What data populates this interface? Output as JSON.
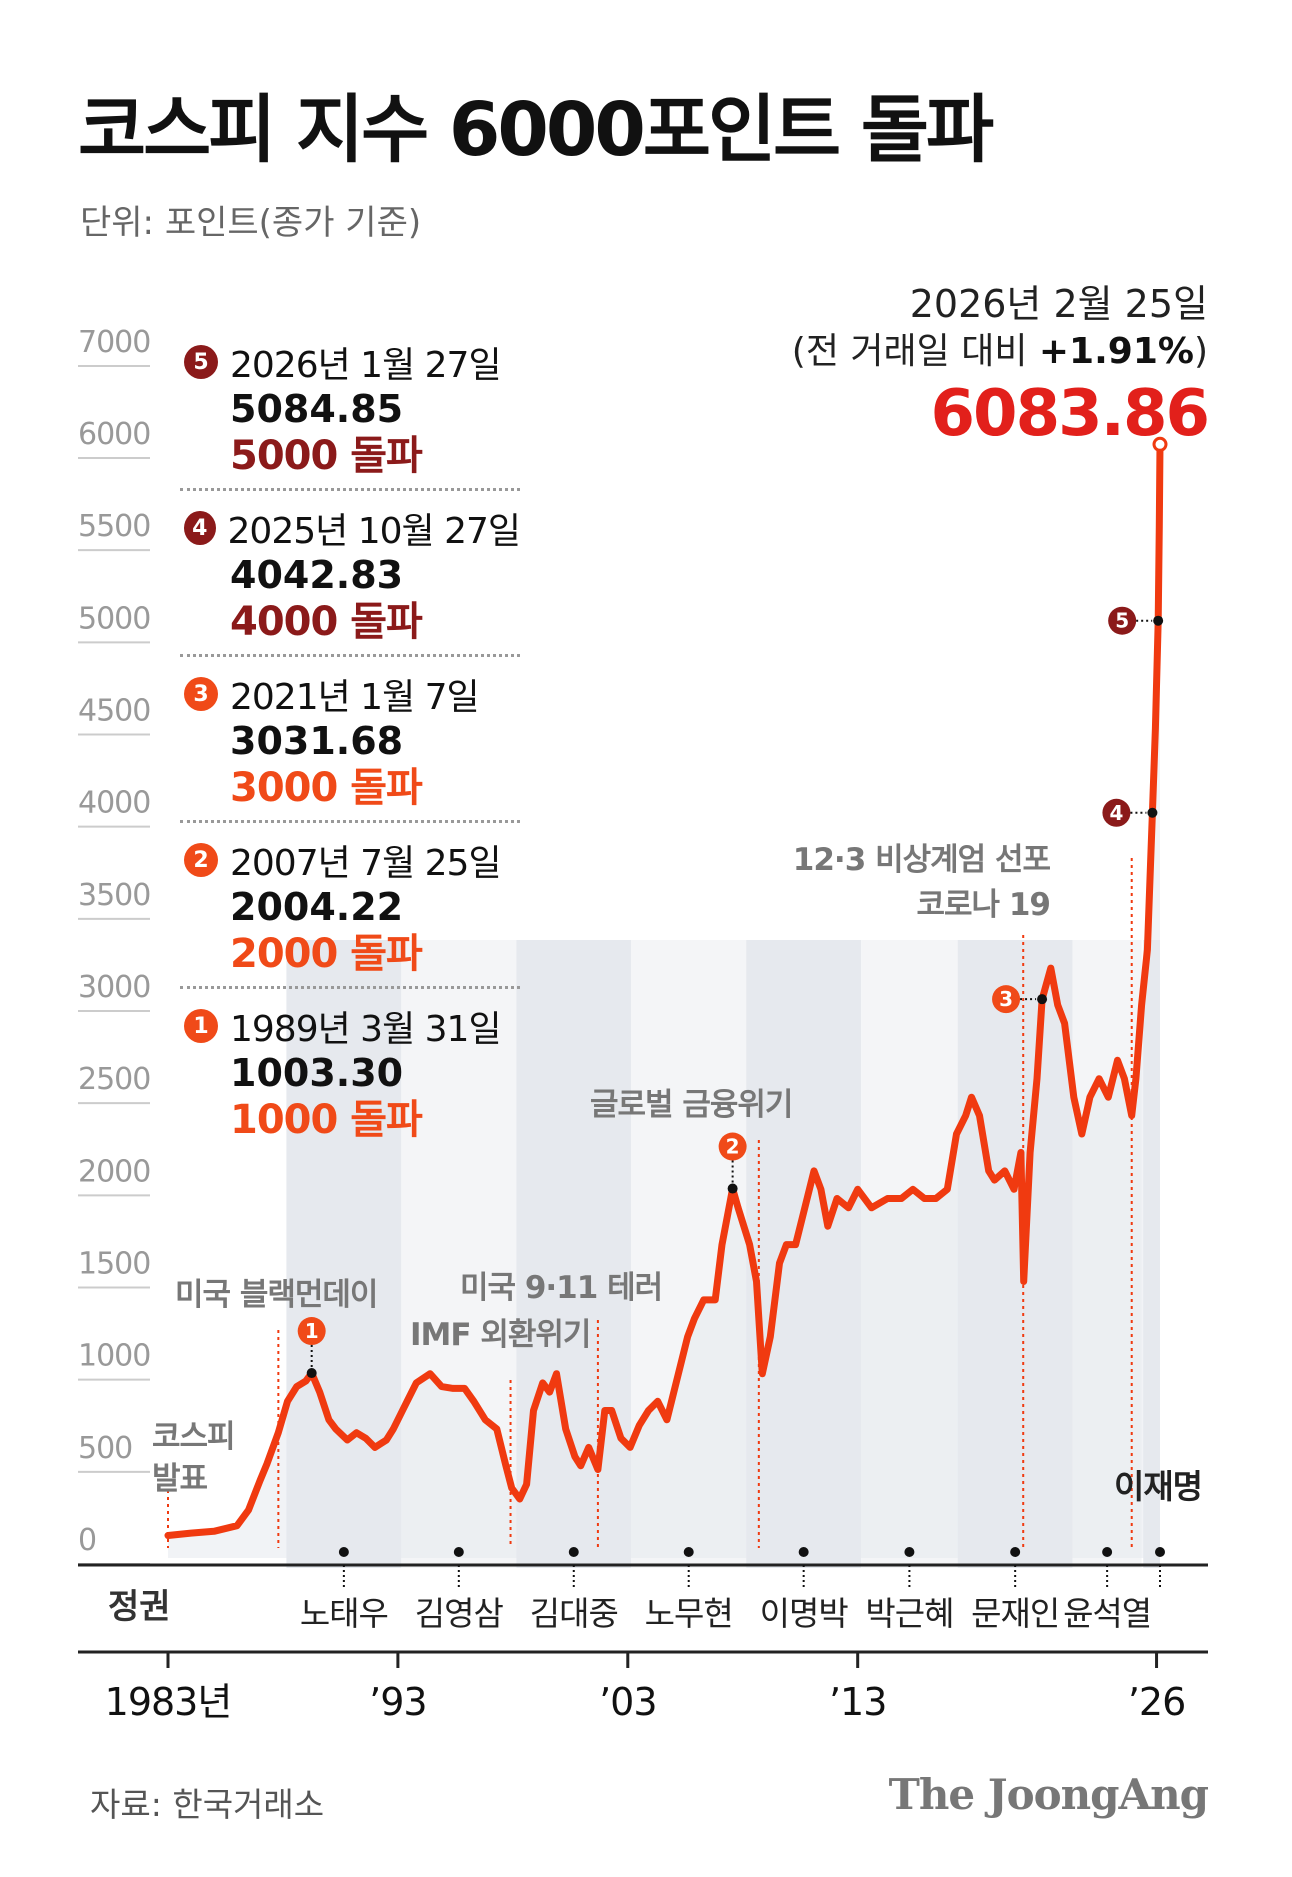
{
  "title": "코스피 지수 6000포인트 돌파",
  "unit_label": "단위: 포인트(종가 기준)",
  "source": "자료: 한국거래소",
  "publisher": "The JoongAng",
  "colors": {
    "line": "#f03a10",
    "dark_badge": "#8b1a1a",
    "orange_badge": "#f04a18",
    "highlight_value": "#e2201b",
    "band": "#e6e9ee",
    "band_alt": "#f4f5f7"
  },
  "latest": {
    "date": "2026년 2월 25일",
    "change_prefix": "(전 거래일 대비 ",
    "change": "+1.91%",
    "change_suffix": ")",
    "value": "6083.86"
  },
  "milestones": [
    {
      "num": "5",
      "date": "2026년 1월 27일",
      "value": "5084.85",
      "break": "5000 돌파",
      "tone": "dark",
      "year": 2026.07,
      "index": 5084.85
    },
    {
      "num": "4",
      "date": "2025년 10월 27일",
      "value": "4042.83",
      "break": "4000 돌파",
      "tone": "dark",
      "year": 2025.82,
      "index": 4042.83
    },
    {
      "num": "3",
      "date": "2021년 1월 7일",
      "value": "3031.68",
      "break": "3000 돌파",
      "tone": "orange",
      "year": 2021.02,
      "index": 3031.68
    },
    {
      "num": "2",
      "date": "2007년 7월 25일",
      "value": "2004.22",
      "break": "2000 돌파",
      "tone": "orange",
      "year": 2007.56,
      "index": 2004.22
    },
    {
      "num": "1",
      "date": "1989년 3월 31일",
      "value": "1003.30",
      "break": "1000 돌파",
      "tone": "orange",
      "year": 1989.25,
      "index": 1003.3
    }
  ],
  "events": [
    {
      "label": "코스피",
      "label2": "발표",
      "year": 1983.0
    },
    {
      "label": "미국 블랙먼데이",
      "year": 1987.8
    },
    {
      "label": "IMF 외환위기",
      "year": 1997.9
    },
    {
      "label": "미국 9·11 테러",
      "year": 2001.7
    },
    {
      "label": "글로벌 금융위기",
      "year": 2008.7
    },
    {
      "label": "코로나 19",
      "year": 2020.2
    },
    {
      "label": "12·3 비상계엄 선포",
      "year": 2024.92
    }
  ],
  "regime_label": "정권",
  "regimes": [
    {
      "name": "노태우",
      "start": 1988.15,
      "end": 1993.15
    },
    {
      "name": "김영삼",
      "start": 1993.15,
      "end": 1998.15
    },
    {
      "name": "김대중",
      "start": 1998.15,
      "end": 2003.15
    },
    {
      "name": "노무현",
      "start": 2003.15,
      "end": 2008.15
    },
    {
      "name": "이명박",
      "start": 2008.15,
      "end": 2013.15
    },
    {
      "name": "박근혜",
      "start": 2013.15,
      "end": 2017.35
    },
    {
      "name": "문재인",
      "start": 2017.35,
      "end": 2022.35
    },
    {
      "name": "윤석열",
      "start": 2022.35,
      "end": 2025.35
    },
    {
      "name": "이재명",
      "start": 2025.42,
      "end": 2026.15
    }
  ],
  "chart_data": {
    "type": "line",
    "title": "코스피 지수 6000포인트 돌파",
    "ylabel": "단위: 포인트(종가 기준)",
    "xlabel": "",
    "y_ticks": [
      0,
      500,
      1000,
      1500,
      2000,
      2500,
      3000,
      3500,
      4000,
      4500,
      5000,
      5500,
      6000,
      7000
    ],
    "y_tick_labels": [
      "0",
      "500",
      "1000",
      "1500",
      "2000",
      "2500",
      "3000",
      "3500",
      "4000",
      "4500",
      "5000",
      "5500",
      "6000",
      "7000"
    ],
    "x_tick_labels": [
      {
        "year": 1983,
        "label": "1983년"
      },
      {
        "year": 1993,
        "label": "’93"
      },
      {
        "year": 2003,
        "label": "’03"
      },
      {
        "year": 2013,
        "label": "’13"
      },
      {
        "year": 2026,
        "label": "’26"
      }
    ],
    "xlim": [
      1983,
      2026.15
    ],
    "series": [
      {
        "x": [
          1983.0,
          1984.0,
          1985.0,
          1986.0,
          1986.5,
          1987.0,
          1987.3,
          1987.8,
          1988.2,
          1988.6,
          1989.0,
          1989.25,
          1989.6,
          1990.0,
          1990.3,
          1990.8,
          1991.2,
          1991.6,
          1992.0,
          1992.5,
          1992.8,
          1993.2,
          1993.8,
          1994.4,
          1994.9,
          1995.4,
          1995.9,
          1996.3,
          1996.8,
          1997.3,
          1997.7,
          1997.95,
          1998.3,
          1998.6,
          1998.9,
          1999.3,
          1999.6,
          1999.9,
          2000.3,
          2000.7,
          2000.95,
          2001.3,
          2001.7,
          2002.0,
          2002.3,
          2002.7,
          2003.1,
          2003.5,
          2003.9,
          2004.3,
          2004.7,
          2005.2,
          2005.6,
          2005.9,
          2006.3,
          2006.8,
          2007.1,
          2007.56,
          2007.8,
          2008.3,
          2008.6,
          2008.85,
          2009.2,
          2009.6,
          2009.9,
          2010.3,
          2010.7,
          2011.1,
          2011.4,
          2011.7,
          2012.1,
          2012.6,
          2013.0,
          2013.6,
          2014.3,
          2014.9,
          2015.4,
          2015.9,
          2016.4,
          2016.9,
          2017.3,
          2017.7,
          2017.95,
          2018.3,
          2018.7,
          2018.95,
          2019.4,
          2019.8,
          2020.1,
          2020.22,
          2020.5,
          2020.8,
          2021.02,
          2021.4,
          2021.7,
          2022.0,
          2022.4,
          2022.75,
          2023.1,
          2023.5,
          2023.9,
          2024.3,
          2024.6,
          2024.92,
          2025.1,
          2025.35,
          2025.6,
          2025.82,
          2025.95,
          2026.07,
          2026.12,
          2026.15
        ],
        "y": [
          122,
          135,
          145,
          175,
          260,
          420,
          510,
          680,
          850,
          930,
          960,
          1003,
          900,
          750,
          700,
          640,
          680,
          650,
          600,
          640,
          700,
          800,
          950,
          1000,
          930,
          920,
          920,
          850,
          750,
          700,
          500,
          380,
          320,
          400,
          800,
          950,
          900,
          1000,
          700,
          550,
          500,
          600,
          480,
          800,
          800,
          650,
          600,
          720,
          800,
          850,
          750,
          1000,
          1200,
          1300,
          1400,
          1400,
          1700,
          2004,
          1900,
          1700,
          1500,
          1000,
          1200,
          1600,
          1700,
          1700,
          1900,
          2100,
          2000,
          1800,
          1950,
          1900,
          2000,
          1900,
          1950,
          1950,
          2000,
          1950,
          1950,
          2000,
          2300,
          2400,
          2500,
          2400,
          2100,
          2050,
          2100,
          2000,
          2200,
          1500,
          2200,
          2600,
          3031,
          3200,
          3000,
          2900,
          2500,
          2300,
          2500,
          2600,
          2500,
          2700,
          2600,
          2400,
          2600,
          3000,
          3300,
          4042,
          4500,
          5084,
          5600,
          6083.86
        ]
      }
    ]
  }
}
